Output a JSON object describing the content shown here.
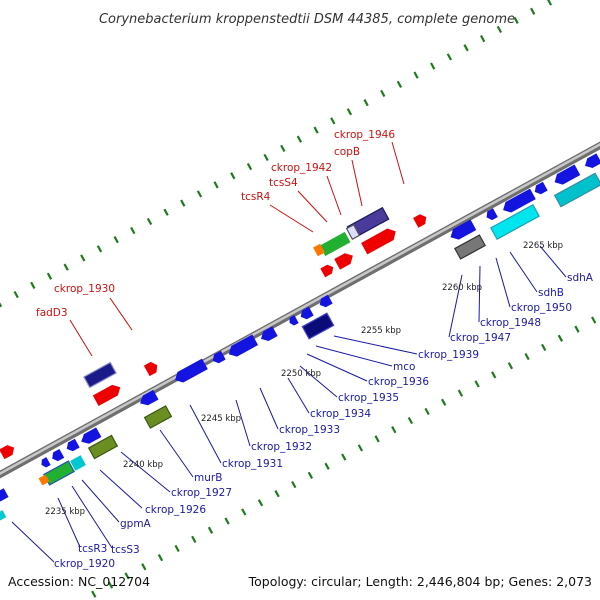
{
  "title": "Corynebacterium kroppenstedtii DSM 44385, complete genome",
  "footer": {
    "accession": "Accession: NC_012704",
    "summary": "Topology: circular; Length: 2,446,804 bp; Genes: 2,073"
  },
  "colors": {
    "label_top": "#cc1111",
    "label_bottom": "#1a1aa6",
    "backbone": "#8c8c8c",
    "tick_dot": "#1f7a1f"
  },
  "scale_labels": [
    "2235 kbp",
    "2240 kbp",
    "2245 kbp",
    "2250 kbp",
    "2255 kbp",
    "2260 kbp",
    "2265 kbp"
  ],
  "top_labels": [
    "ckrop_1946",
    "copB",
    "ckrop_1942",
    "tcsS4",
    "tcsR4",
    "ckrop_1930",
    "fadD3"
  ],
  "bottom_labels": [
    "ckrop_1920",
    "tcsR3",
    "tcsS3",
    "gpmA",
    "ckrop_1926",
    "ckrop_1927",
    "murB",
    "ckrop_1931",
    "ckrop_1932",
    "ckrop_1933",
    "ckrop_1934",
    "ckrop_1935",
    "ckrop_1936",
    "mco",
    "ckrop_1939",
    "ckrop_1947",
    "ckrop_1948",
    "ckrop_1950",
    "sdhB",
    "sdhA"
  ]
}
